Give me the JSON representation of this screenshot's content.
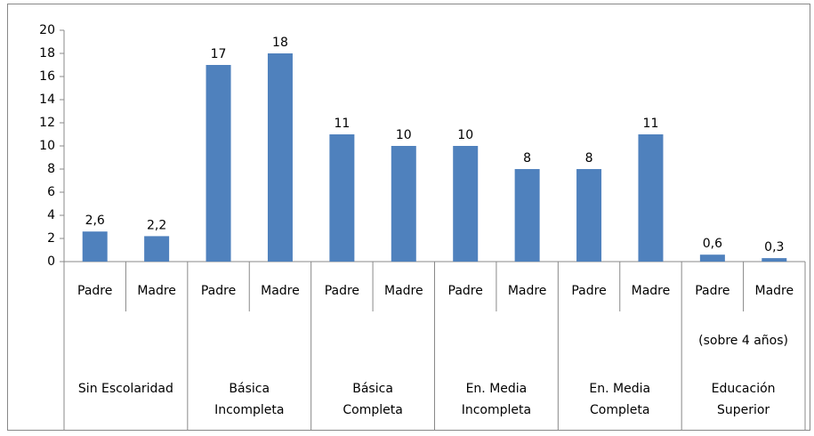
{
  "chart_data": {
    "type": "bar",
    "categories": [
      "Padre",
      "Madre",
      "Padre",
      "Madre",
      "Padre",
      "Madre",
      "Padre",
      "Madre",
      "Padre",
      "Madre",
      "Padre",
      "Madre"
    ],
    "values": [
      2.6,
      2.2,
      17,
      18,
      11,
      10,
      10,
      8,
      8,
      11,
      0.6,
      0.3
    ],
    "value_labels": [
      "2,6",
      "2,2",
      "17",
      "18",
      "11",
      "10",
      "10",
      "8",
      "8",
      "11",
      "0,6",
      "0,3"
    ],
    "groups": [
      {
        "lines": [
          "Sin Escolaridad"
        ]
      },
      {
        "lines": [
          "Básica",
          "Incompleta"
        ]
      },
      {
        "lines": [
          "Básica",
          "Completa"
        ]
      },
      {
        "lines": [
          "En. Media",
          "Incompleta"
        ]
      },
      {
        "lines": [
          "En. Media",
          "Completa"
        ]
      },
      {
        "lines": [
          "Educación",
          "Superior"
        ],
        "note": "(sobre 4 años)"
      }
    ],
    "color": "#4f81bd",
    "ylim": [
      0,
      20
    ],
    "yticks": [
      0,
      2,
      4,
      6,
      8,
      10,
      12,
      14,
      16,
      18,
      20
    ]
  }
}
